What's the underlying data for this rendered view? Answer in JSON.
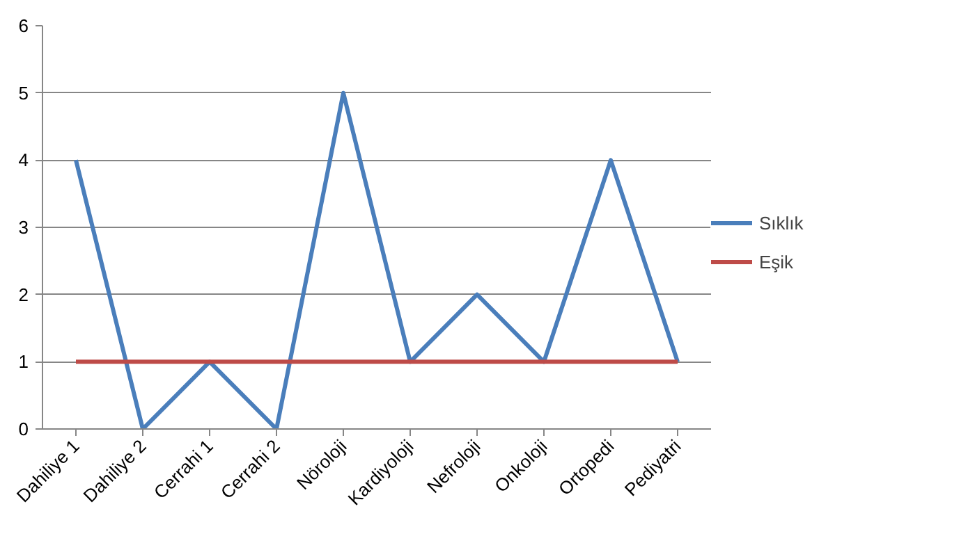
{
  "chart_data": {
    "type": "line",
    "categories": [
      "Dahiliye 1",
      "Dahiliye 2",
      "Cerrahi 1",
      "Cerrahi 2",
      "Nöroloji",
      "Kardiyoloji",
      "Nefroloji",
      "Onkoloji",
      "Ortopedi",
      "Pediyatri"
    ],
    "series": [
      {
        "name": "Sıklık",
        "color": "#4a7ebb",
        "values": [
          4,
          0,
          1,
          0,
          5,
          1,
          2,
          1,
          4,
          1
        ]
      },
      {
        "name": "Eşik",
        "color": "#be4b48",
        "values": [
          1,
          1,
          1,
          1,
          1,
          1,
          1,
          1,
          1,
          1
        ]
      }
    ],
    "ylim": [
      0,
      6
    ],
    "yticks": [
      0,
      1,
      2,
      3,
      4,
      5,
      6
    ],
    "grid": "y",
    "legend": "right",
    "marker": "none",
    "line_style": "solid"
  }
}
